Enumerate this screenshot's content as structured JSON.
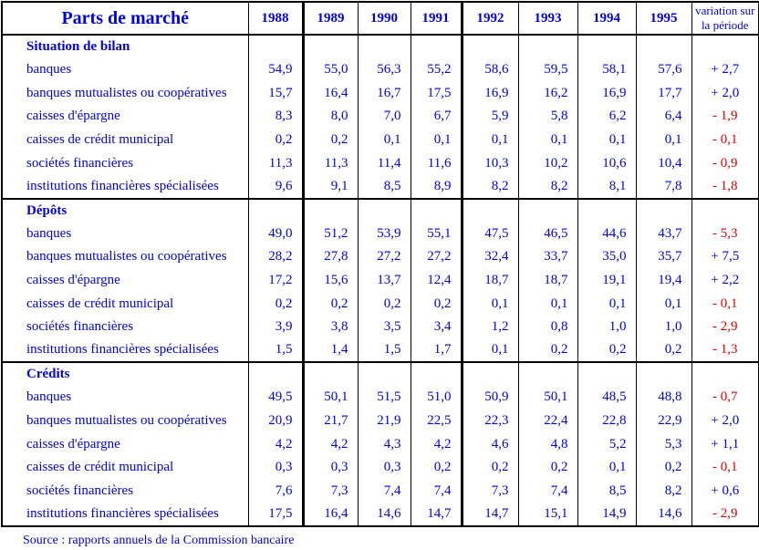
{
  "chart_data": {
    "type": "table",
    "title": "Parts de marché",
    "years": [
      "1988",
      "1989",
      "1990",
      "1991",
      "1992",
      "1993",
      "1994",
      "1995"
    ],
    "variation_header_lines": [
      "variation sur",
      "la période"
    ],
    "sections": [
      {
        "title": "Situation de bilan",
        "rows": [
          {
            "label": "banques",
            "values": [
              "54,9",
              "55,0",
              "56,3",
              "55,2",
              "58,6",
              "59,5",
              "58,1",
              "57,6"
            ],
            "variation": "+ 2,7"
          },
          {
            "label": "banques mutualistes ou coopératives",
            "values": [
              "15,7",
              "16,4",
              "16,7",
              "17,5",
              "16,9",
              "16,2",
              "16,9",
              "17,7"
            ],
            "variation": "+ 2,0"
          },
          {
            "label": "caisses d'épargne",
            "values": [
              "8,3",
              "8,0",
              "7,0",
              "6,7",
              "5,9",
              "5,8",
              "6,2",
              "6,4"
            ],
            "variation": "- 1,9"
          },
          {
            "label": "caisses de crédit municipal",
            "values": [
              "0,2",
              "0,2",
              "0,1",
              "0,1",
              "0,1",
              "0,1",
              "0,1",
              "0,1"
            ],
            "variation": "- 0,1"
          },
          {
            "label": "sociétés financières",
            "values": [
              "11,3",
              "11,3",
              "11,4",
              "11,6",
              "10,3",
              "10,2",
              "10,6",
              "10,4"
            ],
            "variation": "- 0,9"
          },
          {
            "label": "institutions financières spécialisées",
            "values": [
              "9,6",
              "9,1",
              "8,5",
              "8,9",
              "8,2",
              "8,2",
              "8,1",
              "7,8"
            ],
            "variation": "- 1,8"
          }
        ]
      },
      {
        "title": "Dépôts",
        "rows": [
          {
            "label": "banques",
            "values": [
              "49,0",
              "51,2",
              "53,9",
              "55,1",
              "47,5",
              "46,5",
              "44,6",
              "43,7"
            ],
            "variation": "- 5,3"
          },
          {
            "label": "banques mutualistes ou coopératives",
            "values": [
              "28,2",
              "27,8",
              "27,2",
              "27,2",
              "32,4",
              "33,7",
              "35,0",
              "35,7"
            ],
            "variation": "+ 7,5"
          },
          {
            "label": "caisses d'épargne",
            "values": [
              "17,2",
              "15,6",
              "13,7",
              "12,4",
              "18,7",
              "18,7",
              "19,1",
              "19,4"
            ],
            "variation": "+ 2,2"
          },
          {
            "label": "caisses de crédit municipal",
            "values": [
              "0,2",
              "0,2",
              "0,2",
              "0,2",
              "0,1",
              "0,1",
              "0,1",
              "0,1"
            ],
            "variation": "- 0,1"
          },
          {
            "label": "sociétés financières",
            "values": [
              "3,9",
              "3,8",
              "3,5",
              "3,4",
              "1,2",
              "0,8",
              "1,0",
              "1,0"
            ],
            "variation": "- 2,9"
          },
          {
            "label": "institutions financières spécialisées",
            "values": [
              "1,5",
              "1,4",
              "1,5",
              "1,7",
              "0,1",
              "0,2",
              "0,2",
              "0,2"
            ],
            "variation": "- 1,3"
          }
        ]
      },
      {
        "title": "Crédits",
        "rows": [
          {
            "label": "banques",
            "values": [
              "49,5",
              "50,1",
              "51,5",
              "51,0",
              "50,9",
              "50,1",
              "48,5",
              "48,8"
            ],
            "variation": "- 0,7"
          },
          {
            "label": "banques mutualistes ou coopératives",
            "values": [
              "20,9",
              "21,7",
              "21,9",
              "22,5",
              "22,3",
              "22,4",
              "22,8",
              "22,9"
            ],
            "variation": "+ 2,0"
          },
          {
            "label": "caisses d'épargne",
            "values": [
              "4,2",
              "4,2",
              "4,3",
              "4,2",
              "4,6",
              "4,8",
              "5,2",
              "5,3"
            ],
            "variation": "+ 1,1"
          },
          {
            "label": "caisses de crédit municipal",
            "values": [
              "0,3",
              "0,3",
              "0,3",
              "0,2",
              "0,2",
              "0,2",
              "0,1",
              "0,2"
            ],
            "variation": "- 0,1"
          },
          {
            "label": "sociétés financières",
            "values": [
              "7,6",
              "7,3",
              "7,4",
              "7,4",
              "7,3",
              "7,4",
              "8,5",
              "8,2"
            ],
            "variation": "+ 0,6"
          },
          {
            "label": "institutions financières spécialisées",
            "values": [
              "17,5",
              "16,4",
              "14,6",
              "14,7",
              "14,7",
              "15,1",
              "14,9",
              "14,6"
            ],
            "variation": "- 2,9"
          }
        ]
      }
    ]
  },
  "footer": {
    "source": "Source : rapports annuels de la Commission bancaire"
  },
  "colors": {
    "text_blue": "#0000e0",
    "negative_red": "#e00000",
    "border_black": "#000000",
    "background": "#ffffff"
  }
}
